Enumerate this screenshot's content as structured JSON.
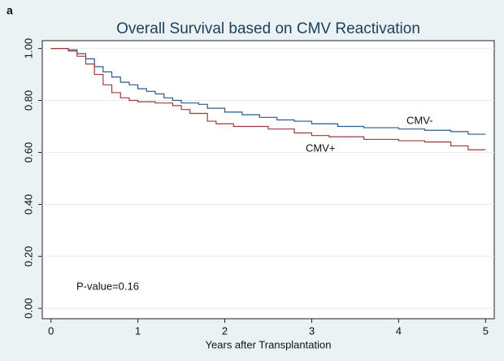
{
  "panel_label": "a",
  "chart_data": {
    "type": "line",
    "step": true,
    "title": "Overall Survival based on CMV Reactivation",
    "x_label": "Years after Transplantation",
    "xlim": [
      -0.1,
      5.1
    ],
    "ylim": [
      -0.04,
      1.03
    ],
    "xticks": [
      0,
      1,
      2,
      3,
      4,
      5
    ],
    "yticks": [
      {
        "value": 0,
        "label": "0.00"
      },
      {
        "value": 0.2,
        "label": "0.20"
      },
      {
        "value": 0.4,
        "label": "0.40"
      },
      {
        "value": 0.6,
        "label": "0.60"
      },
      {
        "value": 0.8,
        "label": "0.80"
      },
      {
        "value": 1,
        "label": "1.00"
      }
    ],
    "grid": true,
    "series": [
      {
        "name": "CMV-",
        "color": "#2a5a8a",
        "x": [
          0,
          0.1,
          0.2,
          0.3,
          0.4,
          0.5,
          0.6,
          0.7,
          0.8,
          0.9,
          1.0,
          1.1,
          1.2,
          1.3,
          1.4,
          1.5,
          1.7,
          1.8,
          2.0,
          2.2,
          2.4,
          2.6,
          2.8,
          3.0,
          3.3,
          3.6,
          4.0,
          4.3,
          4.6,
          4.8,
          5.0
        ],
        "values": [
          1.0,
          1.0,
          0.995,
          0.98,
          0.96,
          0.93,
          0.91,
          0.89,
          0.87,
          0.86,
          0.845,
          0.835,
          0.825,
          0.81,
          0.8,
          0.79,
          0.785,
          0.77,
          0.755,
          0.745,
          0.735,
          0.725,
          0.72,
          0.71,
          0.7,
          0.695,
          0.69,
          0.685,
          0.68,
          0.67,
          0.67
        ]
      },
      {
        "name": "CMV+",
        "color": "#a03a3a",
        "x": [
          0,
          0.2,
          0.3,
          0.4,
          0.5,
          0.6,
          0.7,
          0.8,
          0.9,
          1.0,
          1.2,
          1.4,
          1.5,
          1.6,
          1.8,
          1.9,
          2.1,
          2.5,
          2.8,
          3.0,
          3.2,
          3.6,
          4.0,
          4.3,
          4.6,
          4.8,
          5.0
        ],
        "values": [
          1.0,
          0.99,
          0.97,
          0.94,
          0.9,
          0.86,
          0.83,
          0.81,
          0.8,
          0.795,
          0.79,
          0.78,
          0.765,
          0.75,
          0.72,
          0.71,
          0.7,
          0.69,
          0.675,
          0.665,
          0.66,
          0.65,
          0.645,
          0.64,
          0.625,
          0.61,
          0.61
        ]
      }
    ],
    "annotations": [
      "P-value=0.16"
    ]
  }
}
